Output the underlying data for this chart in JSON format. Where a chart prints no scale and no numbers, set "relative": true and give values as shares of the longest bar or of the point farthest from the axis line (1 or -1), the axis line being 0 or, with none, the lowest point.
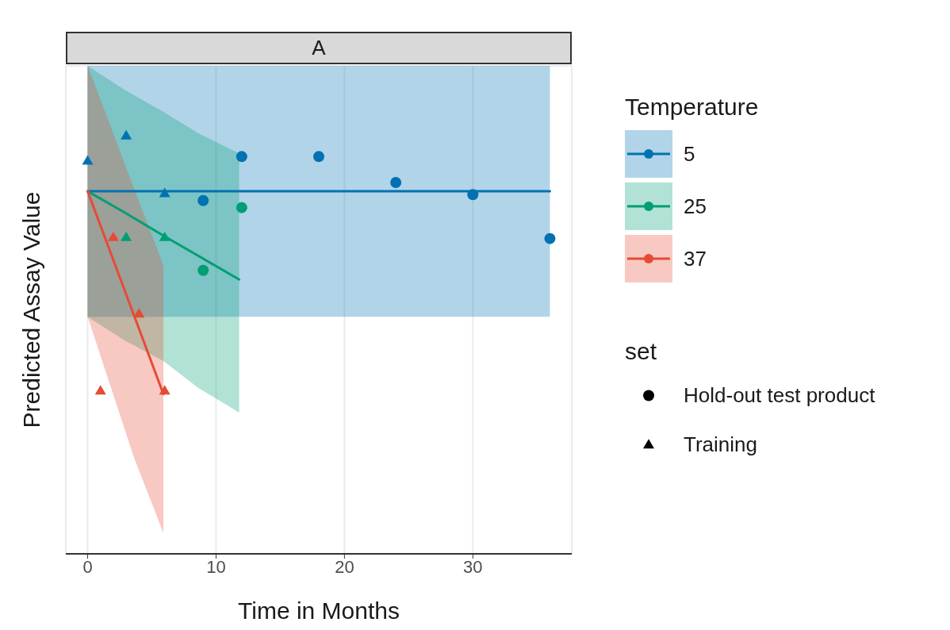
{
  "chart_data": {
    "type": "line",
    "title": "A",
    "xlabel": "Time in Months",
    "ylabel": "Predicted Assay Value",
    "legend_title": "Temperature",
    "annotations": [
      "set",
      "Hold-out test product",
      "Training"
    ],
    "relative": true,
    "xlim": [
      -1.7,
      37.7
    ],
    "xticks": [
      0,
      10,
      20,
      30
    ],
    "grid": true,
    "legend": "right",
    "line_style": "solid",
    "series": [
      {
        "name": "5",
        "type": "line",
        "marker": "none",
        "color": "#0072b2",
        "x": [
          0,
          36
        ],
        "values": [
          0.867,
          0.867
        ],
        "lower": [
          0.567,
          0.567
        ],
        "upper": [
          1.167,
          1.167
        ]
      },
      {
        "name": "25",
        "type": "line",
        "marker": "none",
        "color": "#009e73",
        "x": [
          0,
          2.9,
          5.9,
          8.6,
          11.8
        ],
        "values": [
          0.867,
          0.816,
          0.761,
          0.713,
          0.656
        ],
        "lower": [
          0.567,
          0.51,
          0.461,
          0.397,
          0.338
        ],
        "upper": [
          1.167,
          1.109,
          1.057,
          1.006,
          0.958
        ]
      },
      {
        "name": "37",
        "type": "line",
        "marker": "none",
        "color": "#e64b35",
        "x": [
          0,
          3.6,
          5.9
        ],
        "values": [
          0.867,
          0.571,
          0.382
        ],
        "lower": [
          0.567,
          0.231,
          0.05
        ],
        "upper": [
          1.167,
          0.875,
          0.69
        ]
      },
      {
        "type": "scatter",
        "marker": "circle",
        "color": "#0072b2",
        "x": [
          9,
          12,
          18,
          24,
          30,
          36
        ],
        "values": [
          0.845,
          0.95,
          0.95,
          0.888,
          0.859,
          0.754
        ]
      },
      {
        "type": "scatter",
        "marker": "circle",
        "color": "#009e73",
        "x": [
          9,
          12
        ],
        "values": [
          0.678,
          0.828
        ]
      },
      {
        "type": "scatter",
        "marker": "triangle",
        "color": "#0072b2",
        "x": [
          0,
          3,
          6
        ],
        "values": [
          0.94,
          1,
          0.862
        ]
      },
      {
        "type": "scatter",
        "marker": "triangle",
        "color": "#009e73",
        "x": [
          3,
          6
        ],
        "values": [
          0.757,
          0.757
        ]
      },
      {
        "type": "scatter",
        "marker": "triangle",
        "color": "#e64b35",
        "x": [
          1,
          2,
          4,
          6
        ],
        "values": [
          0.39,
          0.757,
          0.574,
          0.39
        ]
      }
    ]
  }
}
